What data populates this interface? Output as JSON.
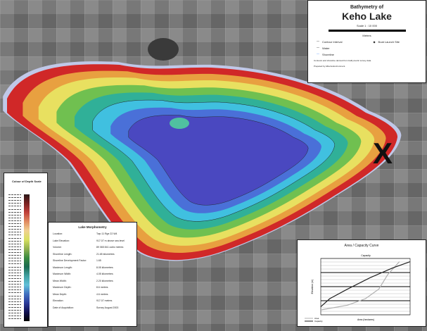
{
  "title": {
    "subtitle": "Bathymetry of",
    "name": "Keho Lake",
    "scale": "Scale 1 : 10 000",
    "scale_ticks": [
      "500",
      "0",
      "500",
      "1000"
    ],
    "scale_unit": "Metres",
    "legend": [
      {
        "label": "Contour Interval"
      },
      {
        "label": "Water"
      },
      {
        "label": "Shoreline"
      }
    ],
    "survey_point": "Boat Launch Site",
    "notes": [
      "Contours and shoreline derived from bathymetric survey data.",
      "Prepared by Alberta Environment."
    ]
  },
  "marker": "X",
  "depth_scale": {
    "title": "Colour of Depth Scale"
  },
  "morphometry": {
    "title": "Lake Morphometry",
    "rows": [
      {
        "label": "Location:",
        "value": "Twp 11 Rge 22 W4"
      },
      {
        "label": "Lake Elevation:",
        "value": "917.07 m above sea level"
      },
      {
        "label": "Volume:",
        "value": "89 065 841 cubic metres"
      },
      {
        "label": "Shoreline Length:",
        "value": "21.65 kilometres"
      },
      {
        "label": "Shoreline Development Factor:",
        "value": "1.65"
      },
      {
        "label": "Maximum Length:",
        "value": "8.05 kilometres"
      },
      {
        "label": "Maximum Width:",
        "value": "4.05 kilometres"
      },
      {
        "label": "Mean Width:",
        "value": "2.20 kilometres"
      },
      {
        "label": "Maximum Depth:",
        "value": "8.6 metres"
      },
      {
        "label": "Mean Depth:",
        "value": "4.6 metres"
      },
      {
        "label": "Elevation:",
        "value": "917.07 metres"
      },
      {
        "label": "Date of Acquisition:",
        "value": "Survey August 2003"
      }
    ]
  },
  "chart_data": {
    "type": "line",
    "title": "Area / Capacity Curve",
    "xlabel": "Area (hectares)",
    "ylabel": "Elevation (m)",
    "x2label": "Capacity",
    "series": [
      {
        "name": "Area",
        "color": "#b0b0b0",
        "points": [
          [
            0,
            0.3
          ],
          [
            0.3,
            0.6
          ],
          [
            0.5,
            1.0
          ],
          [
            0.65,
            1.6
          ],
          [
            0.75,
            2.5
          ],
          [
            0.88,
            3.3
          ]
        ]
      },
      {
        "name": "Capacity",
        "color": "#222222",
        "points": [
          [
            0,
            0.5
          ],
          [
            0.1,
            1.0
          ],
          [
            0.3,
            1.6
          ],
          [
            0.55,
            2.3
          ],
          [
            0.8,
            2.9
          ],
          [
            1.0,
            3.3
          ]
        ]
      }
    ],
    "legend": "bottom-left"
  }
}
